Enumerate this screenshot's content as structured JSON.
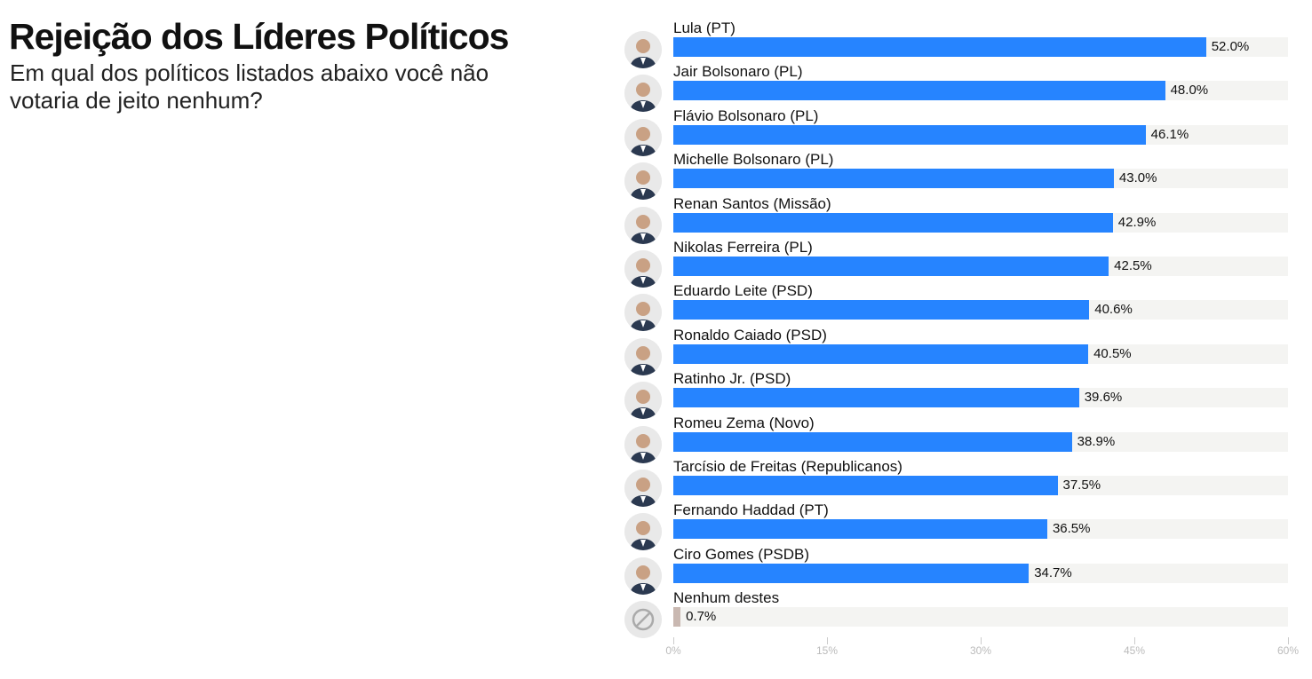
{
  "title": "Rejeição dos Líderes Políticos",
  "subtitle": "Em qual dos políticos listados abaixo você não votaria de jeito nenhum?",
  "colors": {
    "bar": "#2684ff",
    "bar_none": "#c9b8b1",
    "track": "#f4f4f2"
  },
  "chart_data": {
    "type": "bar",
    "orientation": "horizontal",
    "title": "Rejeição dos Líderes Políticos",
    "subtitle": "Em qual dos políticos listados abaixo você não votaria de jeito nenhum?",
    "categories": [
      "Lula (PT)",
      "Jair Bolsonaro (PL)",
      "Flávio Bolsonaro (PL)",
      "Michelle Bolsonaro (PL)",
      "Renan Santos (Missão)",
      "Nikolas Ferreira (PL)",
      "Eduardo Leite (PSD)",
      "Ronaldo Caiado (PSD)",
      "Ratinho Jr. (PSD)",
      "Romeu Zema (Novo)",
      "Tarcísio de Freitas (Republicanos)",
      "Fernando Haddad (PT)",
      "Ciro Gomes (PSDB)",
      "Nenhum destes"
    ],
    "values": [
      52.0,
      48.0,
      46.1,
      43.0,
      42.9,
      42.5,
      40.6,
      40.5,
      39.6,
      38.9,
      37.5,
      36.5,
      34.7,
      0.7
    ],
    "value_labels": [
      "52.0%",
      "48.0%",
      "46.1%",
      "43.0%",
      "42.9%",
      "42.5%",
      "40.6%",
      "40.5%",
      "39.6%",
      "38.9%",
      "37.5%",
      "36.5%",
      "34.7%",
      "0.7%"
    ],
    "avatars": [
      "person-photo-icon",
      "person-photo-icon",
      "person-photo-icon",
      "person-photo-icon",
      "person-photo-icon",
      "person-photo-icon",
      "person-photo-icon",
      "person-photo-icon",
      "person-photo-icon",
      "person-photo-icon",
      "person-photo-icon",
      "person-photo-icon",
      "person-photo-icon",
      "prohibited-icon"
    ],
    "xlim": [
      0,
      60
    ],
    "xticks": [
      0,
      15,
      30,
      45,
      60
    ],
    "xtick_labels": [
      "0%",
      "15%",
      "30%",
      "45%",
      "60%"
    ],
    "xlabel": "",
    "ylabel": "",
    "grid": false,
    "legend": "none"
  }
}
